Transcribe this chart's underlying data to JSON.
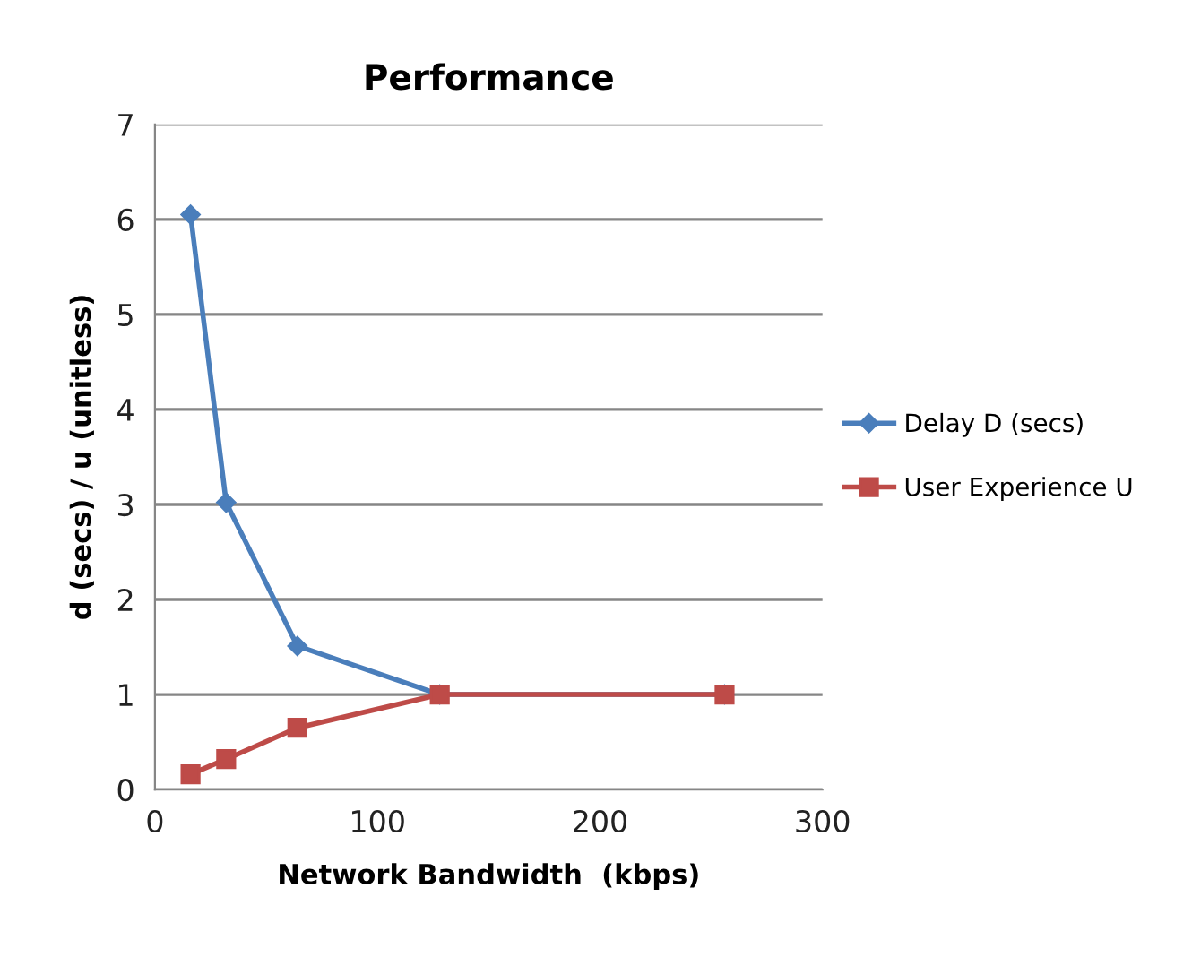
{
  "chart_data": {
    "type": "line",
    "title": "Performance",
    "xlabel": "Network Bandwidth  (kbps)",
    "ylabel": "d (secs) / u (unitless)",
    "x": [
      16,
      32,
      64,
      128,
      256
    ],
    "series": [
      {
        "name": "Delay D (secs)",
        "color": "#4a7ebb",
        "marker": "diamond",
        "values": [
          6.05,
          3.02,
          1.51,
          1.0,
          1.0
        ]
      },
      {
        "name": "User Experience U",
        "color": "#be4b48",
        "marker": "square",
        "values": [
          0.16,
          0.32,
          0.65,
          1.0,
          1.0
        ]
      }
    ],
    "xlim": [
      0,
      300
    ],
    "xticks": [
      0,
      100,
      200,
      300
    ],
    "ylim": [
      0,
      7
    ],
    "yticks": [
      0,
      1,
      2,
      3,
      4,
      5,
      6,
      7
    ],
    "grid": "y",
    "legend": "right",
    "line_style": "solid"
  }
}
